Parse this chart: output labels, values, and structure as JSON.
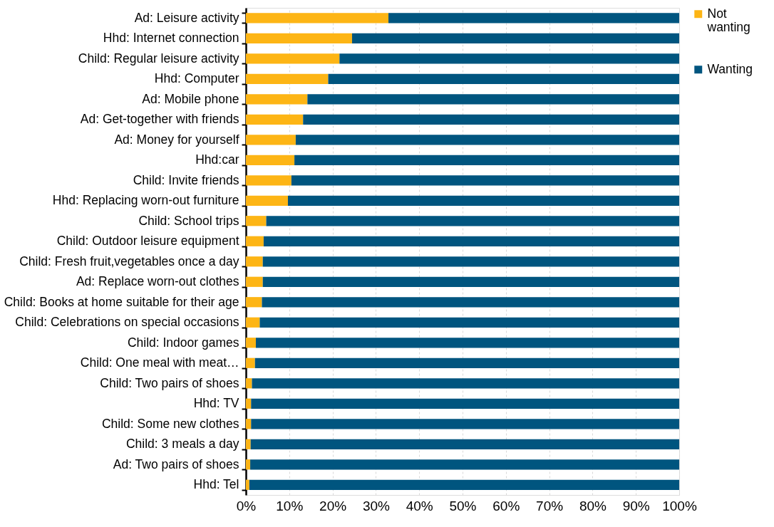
{
  "chart_data": {
    "type": "bar",
    "orientation": "horizontal",
    "stacked": true,
    "categories": [
      "Ad: Leisure activity",
      "Hhd: Internet connection ",
      "Child: Regular leisure activity",
      "Hhd: Computer",
      "Ad: Mobile phone",
      "Ad: Get-together with friends",
      "Ad: Money for yourself",
      "Hhd:car",
      "Child: Invite friends ",
      "Hhd: Replacing worn-out furniture",
      "Child: School trips ",
      "Child: Outdoor leisure equipment ",
      "Child: Fresh fruit,vegetables once a day",
      "Ad: Replace worn-out clothes",
      "Child: Books at home suitable for their age",
      "Child: Celebrations on special occasions ",
      "Child: Indoor games ",
      "Child: One meal with meat…",
      "Child: Two pairs of shoes ",
      "Hhd: TV",
      "Child: Some new clothes",
      "Child: 3 meals a day",
      "Ad: Two pairs of shoes",
      "Hhd: Tel"
    ],
    "series": [
      {
        "name": "Not wanting",
        "color": "#fdb515",
        "values": [
          32.9,
          24.5,
          21.6,
          19.0,
          14.2,
          13.2,
          11.5,
          11.2,
          10.5,
          9.7,
          4.7,
          4.1,
          3.9,
          3.9,
          3.7,
          3.2,
          2.3,
          2.1,
          1.4,
          1.2,
          1.2,
          1.1,
          1.0,
          0.8
        ]
      },
      {
        "name": "Wanting",
        "color": "#00557f",
        "values": [
          67.1,
          75.5,
          78.4,
          81.0,
          85.8,
          86.8,
          88.5,
          88.8,
          89.5,
          90.3,
          95.3,
          95.9,
          96.1,
          96.1,
          96.3,
          96.8,
          97.7,
          97.9,
          98.6,
          98.8,
          98.8,
          98.9,
          99.0,
          99.2
        ]
      }
    ],
    "xlim": [
      0,
      100
    ],
    "xticks": [
      {
        "value": 0,
        "label": "0%"
      },
      {
        "value": 10,
        "label": "10%"
      },
      {
        "value": 20,
        "label": "20%"
      },
      {
        "value": 30,
        "label": "30%"
      },
      {
        "value": 40,
        "label": "40%"
      },
      {
        "value": 50,
        "label": "50%"
      },
      {
        "value": 60,
        "label": "60%"
      },
      {
        "value": 70,
        "label": "70%"
      },
      {
        "value": 80,
        "label": "80%"
      },
      {
        "value": 90,
        "label": "90%"
      },
      {
        "value": 100,
        "label": "100%"
      }
    ],
    "grid": "x",
    "legend": "right"
  }
}
